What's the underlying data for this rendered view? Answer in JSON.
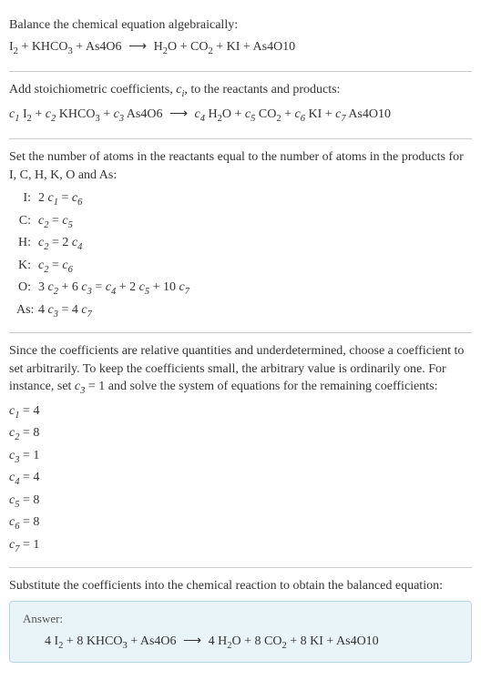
{
  "intro": {
    "line1": "Balance the chemical equation algebraically:",
    "reaction_lhs": "I₂ + KHCO₃ + As4O6",
    "reaction_rhs": "H₂O + CO₂ + KI + As4O10"
  },
  "stoich": {
    "text": "Add stoichiometric coefficients, cᵢ, to the reactants and products:",
    "lhs_c1": "c₁",
    "lhs_s1": " I₂ + ",
    "lhs_c2": "c₂",
    "lhs_s2": " KHCO₃ + ",
    "lhs_c3": "c₃",
    "lhs_s3": " As4O6",
    "rhs_c4": "c₄",
    "rhs_s4": " H₂O + ",
    "rhs_c5": "c₅",
    "rhs_s5": " CO₂ + ",
    "rhs_c6": "c₆",
    "rhs_s6": " KI + ",
    "rhs_c7": "c₇",
    "rhs_s7": " As4O10"
  },
  "atoms": {
    "intro": "Set the number of atoms in the reactants equal to the number of atoms in the products for I, C, H, K, O and As:",
    "rows": [
      {
        "label": "I:",
        "eq": "2 c₁ = c₆"
      },
      {
        "label": "C:",
        "eq": "c₂ = c₅"
      },
      {
        "label": "H:",
        "eq": "c₂ = 2 c₄"
      },
      {
        "label": "K:",
        "eq": "c₂ = c₆"
      },
      {
        "label": "O:",
        "eq": "3 c₂ + 6 c₃ = c₄ + 2 c₅ + 10 c₇"
      },
      {
        "label": "As:",
        "eq": "4 c₃ = 4 c₇"
      }
    ]
  },
  "solve": {
    "text": "Since the coefficients are relative quantities and underdetermined, choose a coefficient to set arbitrarily. To keep the coefficients small, the arbitrary value is ordinarily one. For instance, set c₃ = 1 and solve the system of equations for the remaining coefficients:",
    "coeffs": [
      "c₁ = 4",
      "c₂ = 8",
      "c₃ = 1",
      "c₄ = 4",
      "c₅ = 8",
      "c₆ = 8",
      "c₇ = 1"
    ]
  },
  "final": {
    "text": "Substitute the coefficients into the chemical reaction to obtain the balanced equation:",
    "answer_label": "Answer:",
    "answer_lhs": "4 I₂ + 8 KHCO₃ + As4O6",
    "answer_rhs": "4 H₂O + 8 CO₂ + 8 KI + As4O10"
  },
  "arrow": "⟶"
}
